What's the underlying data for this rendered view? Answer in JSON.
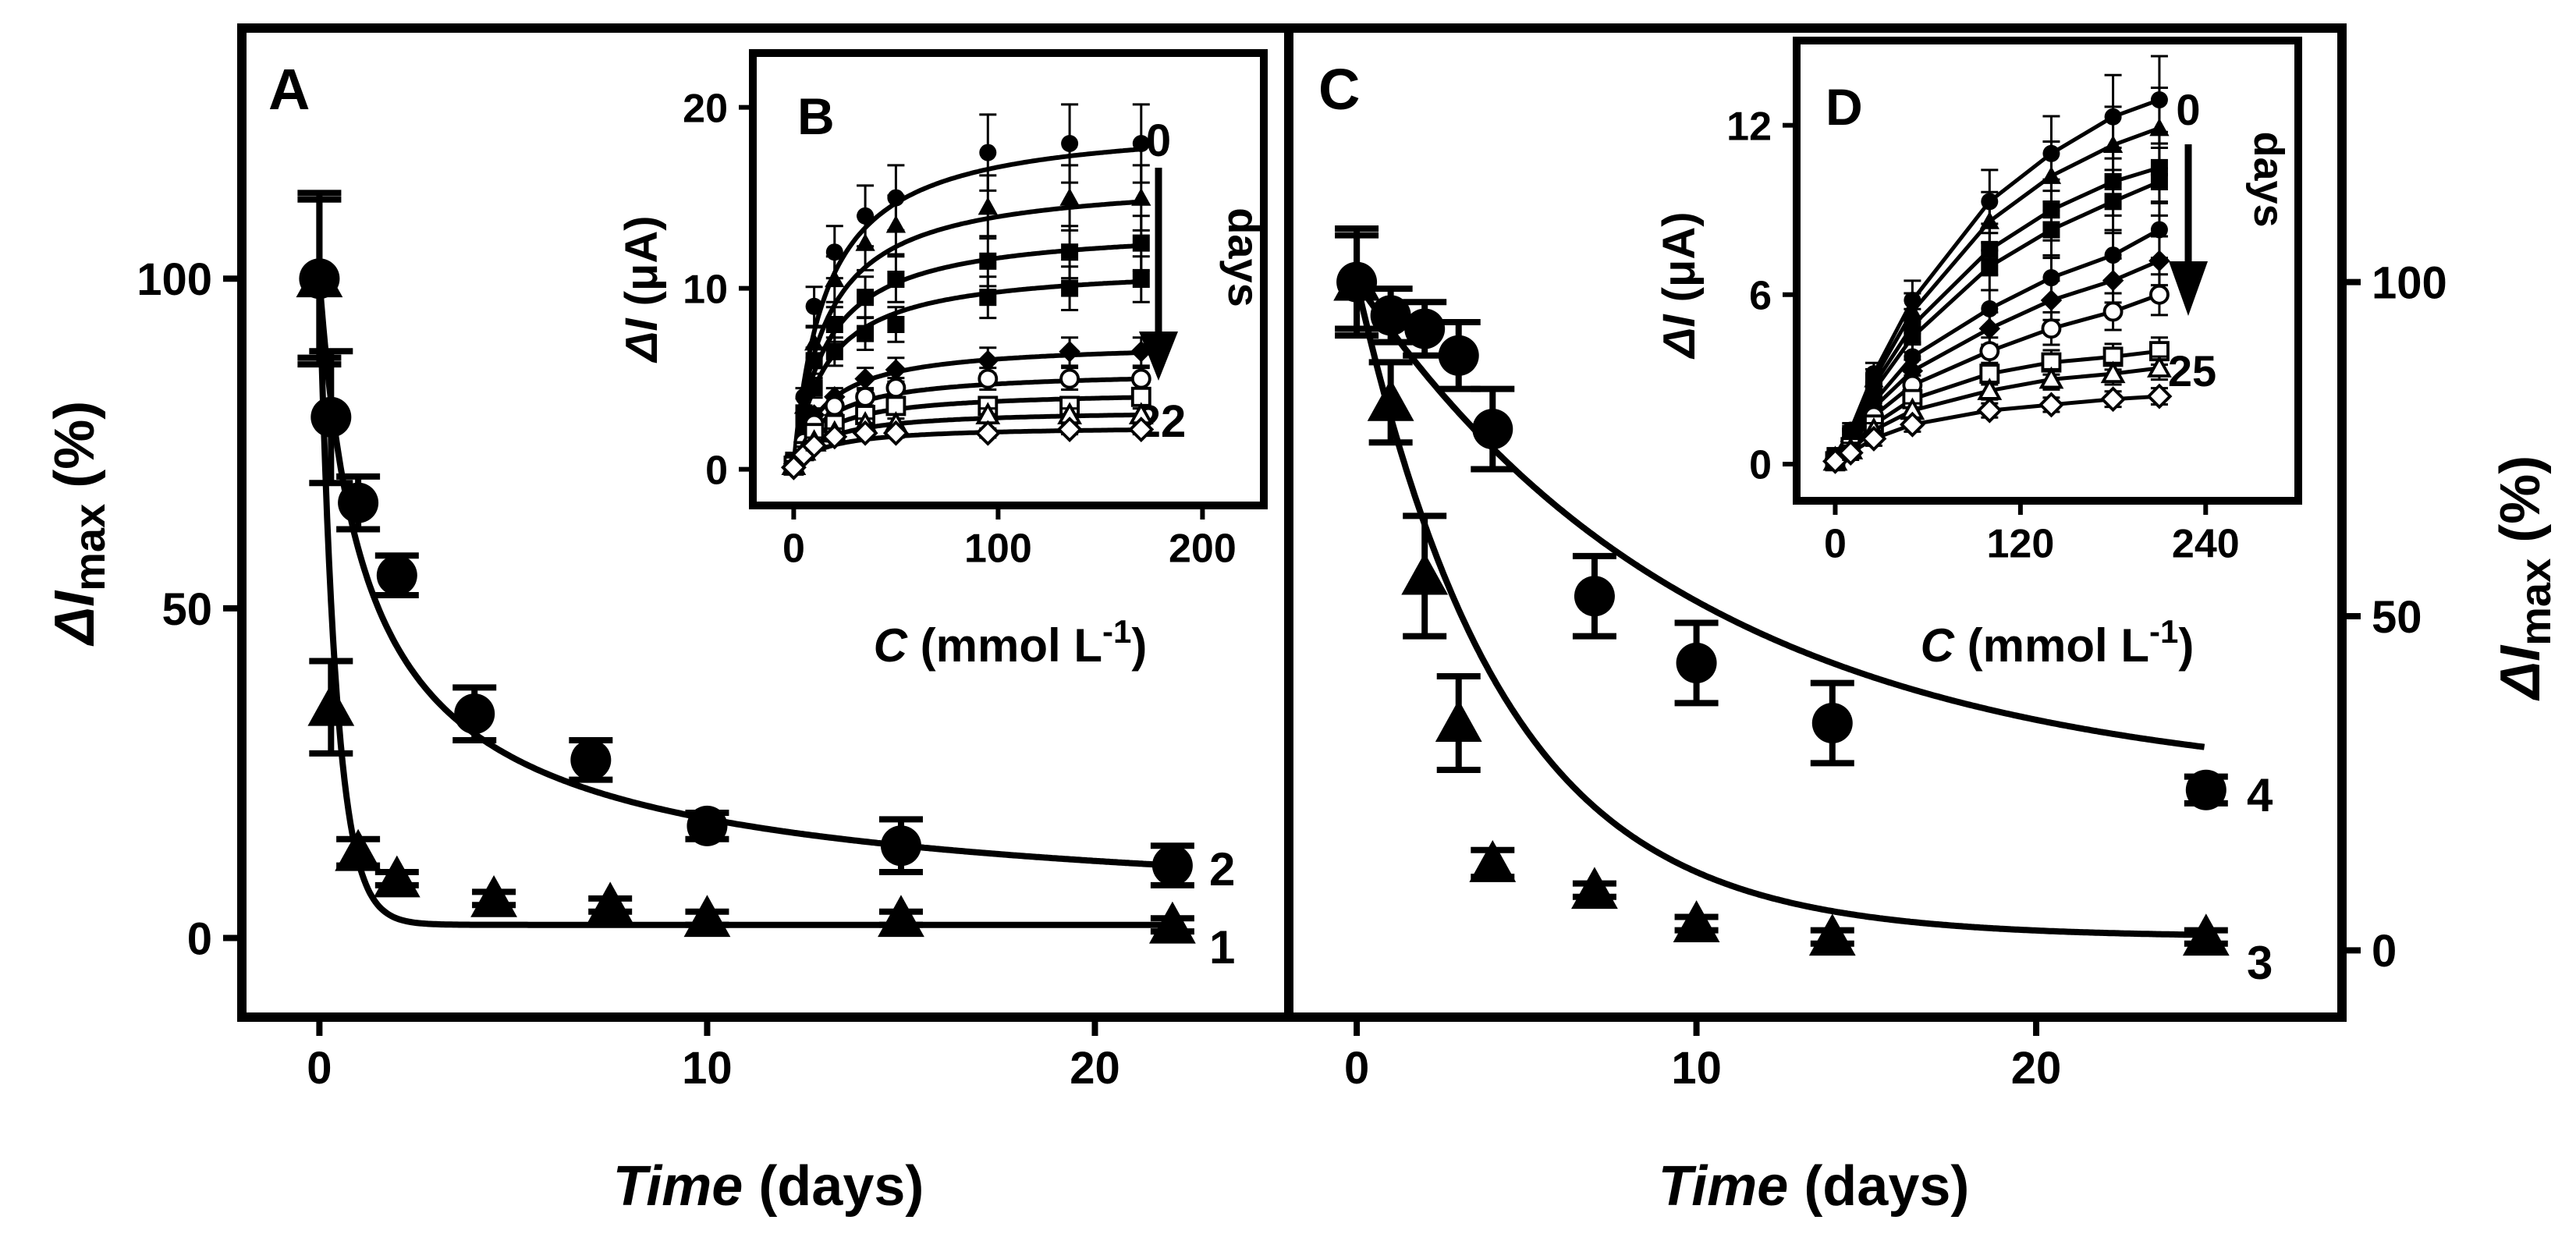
{
  "figure": {
    "colors": {
      "ink": "#000000",
      "background": "#ffffff"
    }
  },
  "panels": {
    "A": {
      "letter": "A",
      "xlabel_italic": "Time",
      "xlabel_rest": " (days)",
      "ylabel_delta": "Δ",
      "ylabel_I": "I",
      "ylabel_sub": "max",
      "ylabel_rest": " (%)",
      "curve_labels": [
        "2",
        "1"
      ]
    },
    "B": {
      "letter": "B",
      "xlabel_italic": "C",
      "xlabel_rest": " (mmol L",
      "xlabel_sup": "-1",
      "xlabel_close": ")",
      "ylabel_delta": "Δ",
      "ylabel_I": "I",
      "ylabel_rest": " (μA)",
      "arrow_top": "0",
      "arrow_bottom": "22",
      "arrow_word": "days"
    },
    "C": {
      "letter": "C",
      "xlabel_italic": "Time",
      "xlabel_rest": " (days)",
      "ylabel_delta": "Δ",
      "ylabel_I": "I",
      "ylabel_sub": "max",
      "ylabel_rest": " (%)",
      "curve_labels": [
        "4",
        "3"
      ]
    },
    "D": {
      "letter": "D",
      "xlabel_italic": "C",
      "xlabel_rest": " (mmol L",
      "xlabel_sup": "-1",
      "xlabel_close": ")",
      "ylabel_delta": "Δ",
      "ylabel_I": "I",
      "ylabel_rest": " (μA)",
      "arrow_top": "0",
      "arrow_bottom": "25",
      "arrow_word": "days"
    }
  },
  "chart_data": [
    {
      "id": "A",
      "type": "scatter",
      "xlim": [
        -2,
        25
      ],
      "ylim": [
        -12,
        138
      ],
      "xticks": [
        0,
        10,
        20
      ],
      "yticks": [
        0,
        50,
        100
      ],
      "series": [
        {
          "name": "2",
          "marker": "circle",
          "fit": "hyperbolic",
          "x": [
            0,
            0.3,
            1,
            2,
            4,
            7,
            10,
            15,
            22
          ],
          "y": [
            100,
            79,
            66,
            55,
            34,
            27,
            17,
            14,
            11
          ],
          "err": [
            12,
            10,
            4,
            3,
            4,
            3,
            2,
            4,
            3
          ]
        },
        {
          "name": "1",
          "marker": "triangle",
          "fit": "exponential",
          "x": [
            0,
            0.3,
            1,
            2,
            4.5,
            7.5,
            10,
            15,
            22
          ],
          "y": [
            100,
            35,
            13,
            9,
            6,
            5,
            3,
            3,
            2
          ],
          "err": [
            13,
            7,
            2,
            1,
            1,
            1,
            1,
            1,
            1
          ]
        }
      ]
    },
    {
      "id": "B",
      "type": "line",
      "xlim": [
        -20,
        230
      ],
      "ylim": [
        -2,
        23
      ],
      "xticks": [
        0,
        100,
        200
      ],
      "yticks": [
        0,
        10,
        20
      ],
      "x": [
        0,
        5,
        10,
        20,
        35,
        50,
        95,
        135,
        170
      ],
      "series": [
        {
          "marker": "circle",
          "values": [
            0.5,
            4,
            9,
            12,
            14,
            15,
            17.5,
            18,
            18
          ]
        },
        {
          "marker": "triangle",
          "values": [
            0.5,
            3.5,
            7,
            10.5,
            12.5,
            13.5,
            14.5,
            15,
            15
          ]
        },
        {
          "marker": "square",
          "values": [
            0.5,
            3,
            6,
            8,
            9.5,
            10.5,
            11.5,
            12,
            12.5
          ]
        },
        {
          "marker": "square",
          "values": [
            0.4,
            2.5,
            4.5,
            6.5,
            7.5,
            8,
            9.5,
            10,
            10.5
          ]
        },
        {
          "marker": "diamond",
          "values": [
            0.3,
            1.5,
            3,
            4,
            5,
            5.5,
            6,
            6.5,
            6.5
          ]
        },
        {
          "marker": "circle-open",
          "values": [
            0.3,
            1.5,
            2.5,
            3.5,
            4,
            4.5,
            5,
            5,
            5
          ]
        },
        {
          "marker": "square-open",
          "values": [
            0.2,
            1,
            2,
            2.5,
            3,
            3.5,
            3.5,
            3.5,
            4
          ]
        },
        {
          "marker": "triangle-open",
          "values": [
            0.2,
            1,
            1.5,
            2,
            2.5,
            2.5,
            3,
            3,
            3
          ]
        },
        {
          "marker": "diamond-open",
          "values": [
            0.1,
            0.8,
            1.3,
            1.8,
            2,
            2,
            2,
            2.2,
            2.2
          ]
        }
      ]
    },
    {
      "id": "C",
      "type": "scatter",
      "xlim": [
        -2,
        29
      ],
      "ylim": [
        -10,
        138
      ],
      "xticks": [
        0,
        10,
        20
      ],
      "yticks": [
        0,
        50,
        100
      ],
      "series": [
        {
          "name": "4",
          "marker": "circle",
          "fit": "exponential",
          "x": [
            0,
            1,
            2,
            3,
            4,
            7,
            10,
            14,
            25
          ],
          "y": [
            100,
            95,
            93,
            89,
            78,
            53,
            43,
            34,
            24
          ],
          "err": [
            8,
            4,
            4,
            5,
            6,
            6,
            6,
            6,
            2
          ]
        },
        {
          "name": "3",
          "marker": "triangle",
          "fit": "exponential",
          "x": [
            0,
            1,
            2,
            3,
            4,
            7,
            10,
            14,
            25
          ],
          "y": [
            100,
            82,
            56,
            34,
            13,
            9,
            4,
            2,
            2
          ],
          "err": [
            7,
            6,
            9,
            7,
            2,
            1,
            1,
            1,
            1
          ]
        }
      ]
    },
    {
      "id": "D",
      "type": "line",
      "xlim": [
        -25,
        300
      ],
      "ylim": [
        -1.3,
        15
      ],
      "xticks": [
        0,
        120,
        240
      ],
      "yticks": [
        0,
        6,
        12
      ],
      "x": [
        0,
        10,
        25,
        50,
        100,
        140,
        180,
        210
      ],
      "series": [
        {
          "marker": "circle",
          "values": [
            0.3,
            1.2,
            3.2,
            5.8,
            9.3,
            11,
            12.3,
            12.9
          ]
        },
        {
          "marker": "triangle",
          "values": [
            0.3,
            1.1,
            3,
            5.4,
            8.6,
            10.2,
            11.3,
            11.9
          ]
        },
        {
          "marker": "square",
          "values": [
            0.3,
            1,
            2.8,
            4.9,
            7.6,
            9,
            10,
            10.5
          ]
        },
        {
          "marker": "square",
          "values": [
            0.2,
            1,
            2.6,
            4.5,
            7,
            8.3,
            9.3,
            10
          ]
        },
        {
          "marker": "circle",
          "values": [
            0.2,
            0.9,
            2.2,
            3.8,
            5.5,
            6.6,
            7.4,
            8.3
          ]
        },
        {
          "marker": "diamond",
          "values": [
            0.2,
            0.8,
            2,
            3.3,
            4.8,
            5.8,
            6.5,
            7.2
          ]
        },
        {
          "marker": "circle-open",
          "values": [
            0.2,
            0.7,
            1.7,
            2.8,
            4,
            4.8,
            5.4,
            6
          ]
        },
        {
          "marker": "square-open",
          "values": [
            0.1,
            0.6,
            1.4,
            2.3,
            3.2,
            3.6,
            3.8,
            4
          ]
        },
        {
          "marker": "triangle-open",
          "values": [
            0.1,
            0.5,
            1.2,
            1.9,
            2.6,
            3,
            3.2,
            3.4
          ]
        },
        {
          "marker": "diamond-open",
          "values": [
            0.1,
            0.4,
            0.9,
            1.4,
            1.9,
            2.1,
            2.3,
            2.4
          ]
        }
      ]
    }
  ]
}
